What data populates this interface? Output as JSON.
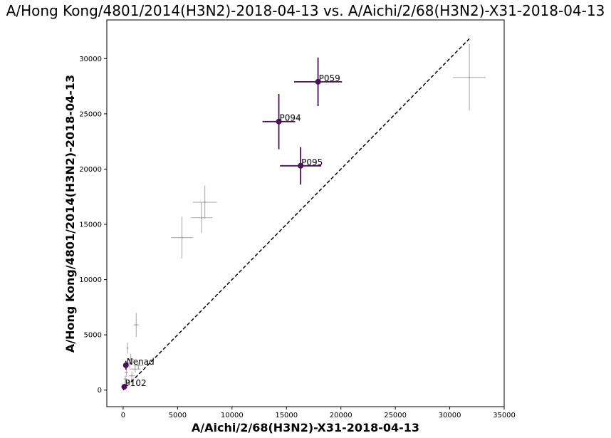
{
  "chart_data": {
    "type": "scatter",
    "title": "A/Hong Kong/4801/2014(H3N2)-2018-04-13 vs. A/Aichi/2/68(H3N2)-X31-2018-04-13",
    "xlabel": "A/Aichi/2/68(H3N2)-X31-2018-04-13",
    "ylabel": "A/Hong Kong/4801/2014(H3N2)-2018-04-13",
    "xlim": [
      -1500,
      35000
    ],
    "ylim": [
      -1500,
      33500
    ],
    "xticks": [
      0,
      5000,
      10000,
      15000,
      20000,
      25000,
      30000,
      35000
    ],
    "yticks": [
      0,
      5000,
      10000,
      15000,
      20000,
      25000,
      30000
    ],
    "xtick_labels": [
      "0",
      "5000",
      "10000",
      "15000",
      "20000",
      "25000",
      "30000",
      "35000"
    ],
    "ytick_labels": [
      "0",
      "5000",
      "10000",
      "15000",
      "20000",
      "25000",
      "30000"
    ],
    "grid": false,
    "identity_line": {
      "from": [
        0,
        0
      ],
      "to": [
        31800,
        31800
      ],
      "style": "dashed",
      "color": "#000000"
    },
    "highlight_color": "#4a1158",
    "background_color": "#a0a0a0",
    "highlighted": [
      {
        "label": "P059",
        "x": 17900,
        "y": 27900,
        "xerr": 2200,
        "yerr": 2200
      },
      {
        "label": "P094",
        "x": 14300,
        "y": 24300,
        "xerr": 1500,
        "yerr": 2500
      },
      {
        "label": "P095",
        "x": 16300,
        "y": 20300,
        "xerr": 1900,
        "yerr": 1700
      },
      {
        "label": "Nenad",
        "x": 250,
        "y": 2250,
        "xerr": 150,
        "yerr": 400
      },
      {
        "label": "P102",
        "x": 100,
        "y": 300,
        "xerr": 80,
        "yerr": 150
      }
    ],
    "background": [
      {
        "x": 31800,
        "y": 28300,
        "xerr": 1500,
        "yerr": 3000
      },
      {
        "x": 5400,
        "y": 13800,
        "xerr": 1000,
        "yerr": 1900
      },
      {
        "x": 7200,
        "y": 15600,
        "xerr": 1000,
        "yerr": 1400
      },
      {
        "x": 7500,
        "y": 17000,
        "xerr": 1100,
        "yerr": 1500
      },
      {
        "x": 1200,
        "y": 5900,
        "xerr": 250,
        "yerr": 1100
      },
      {
        "x": 400,
        "y": 3800,
        "xerr": 80,
        "yerr": 500
      },
      {
        "x": 700,
        "y": 2800,
        "xerr": 300,
        "yerr": 500
      },
      {
        "x": 1400,
        "y": 2200,
        "xerr": 400,
        "yerr": 300
      },
      {
        "x": 1100,
        "y": 1900,
        "xerr": 500,
        "yerr": 300
      },
      {
        "x": 300,
        "y": 1600,
        "xerr": 150,
        "yerr": 400
      },
      {
        "x": 800,
        "y": 1300,
        "xerr": 300,
        "yerr": 400
      },
      {
        "x": 200,
        "y": 1000,
        "xerr": 150,
        "yerr": 300
      },
      {
        "x": 500,
        "y": 700,
        "xerr": 200,
        "yerr": 250
      },
      {
        "x": 150,
        "y": 500,
        "xerr": 100,
        "yerr": 200
      },
      {
        "x": 600,
        "y": 2400,
        "xerr": 200,
        "yerr": 400
      }
    ]
  }
}
